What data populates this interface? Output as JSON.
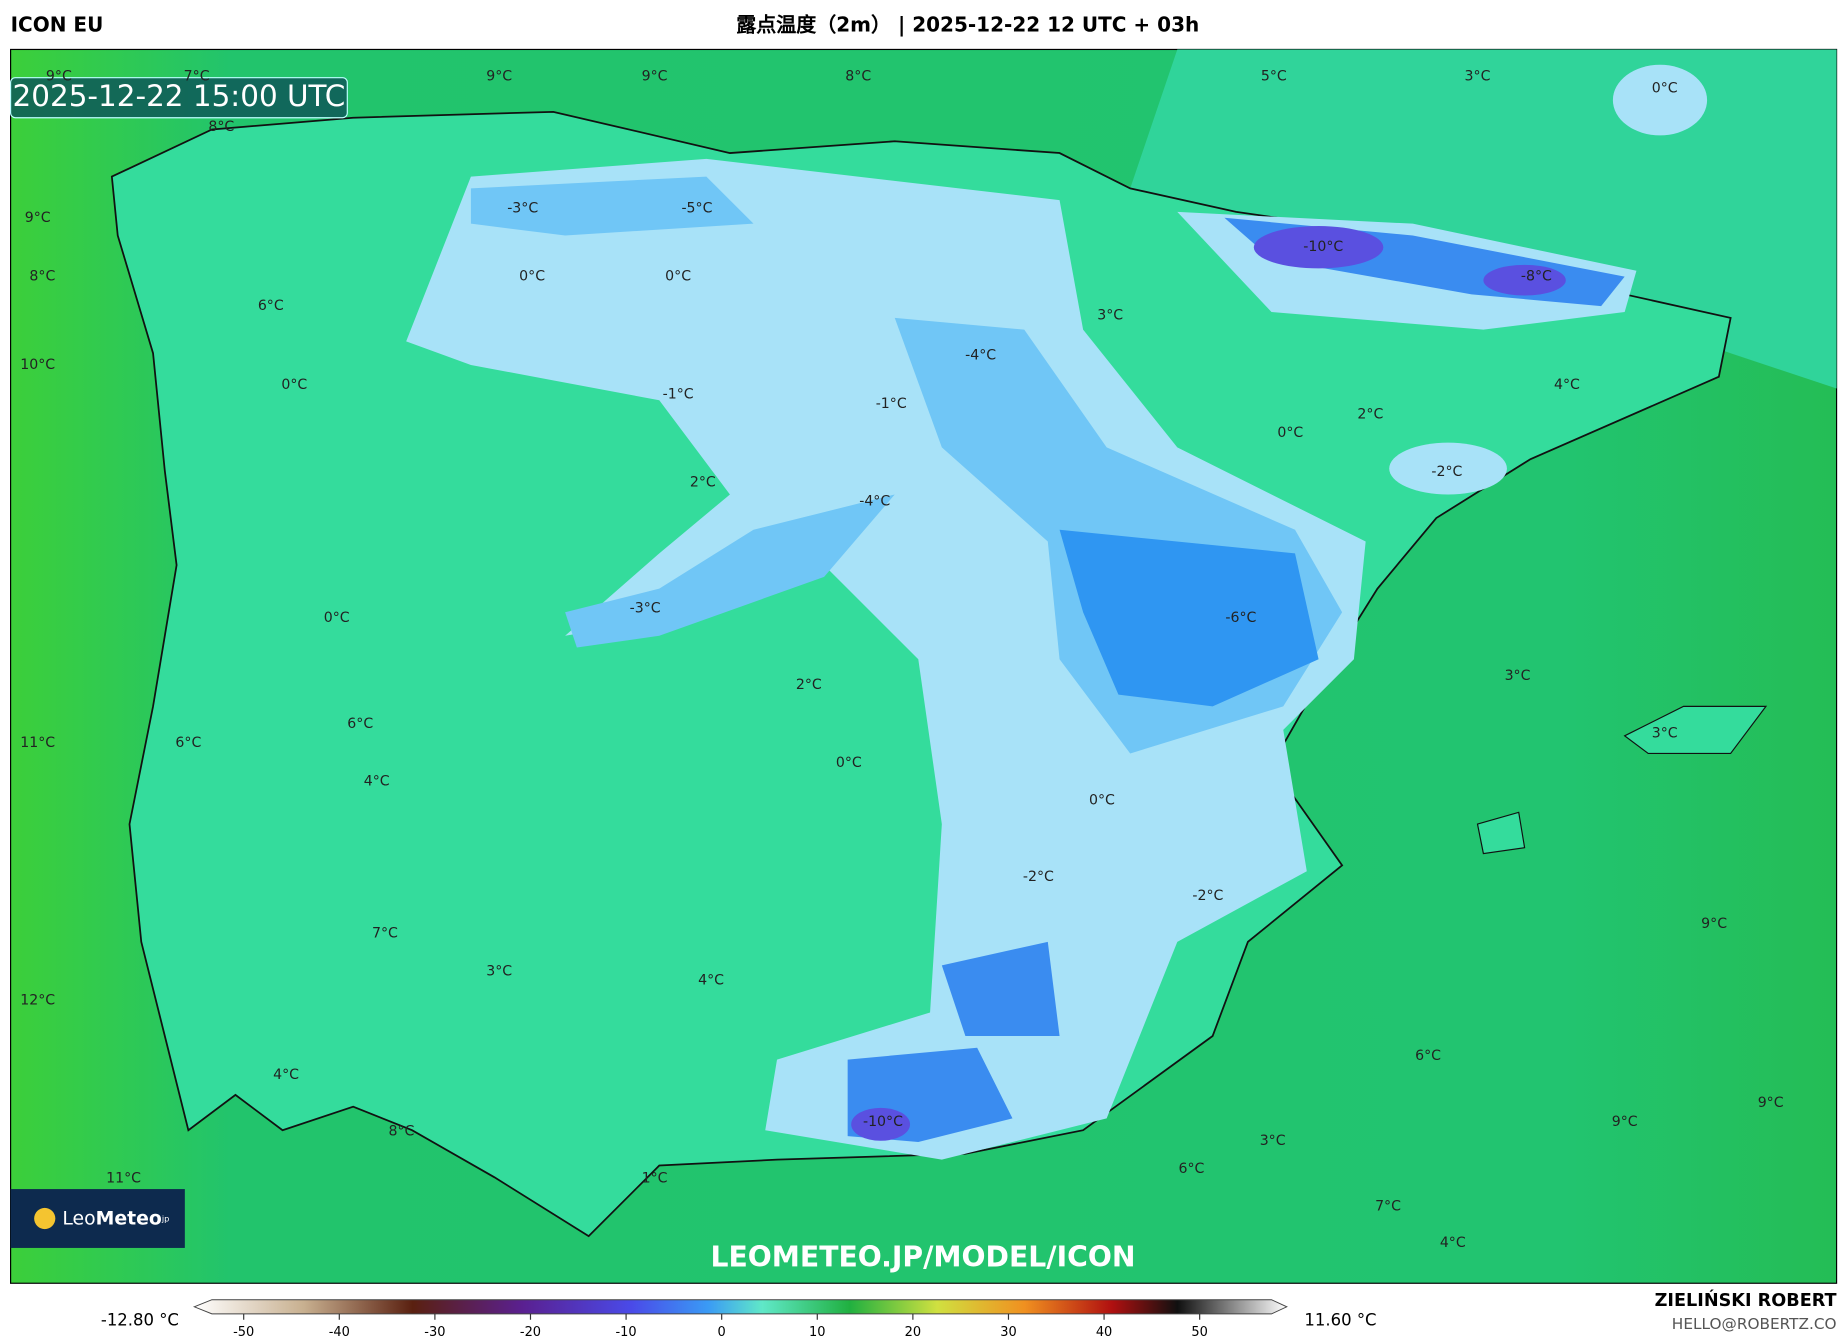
{
  "header": {
    "model": "ICON EU",
    "title": "露点温度（2m） | 2025-12-22 12 UTC + 03h"
  },
  "timestamp": "2025-12-22 15:00 UTC",
  "map_labels": [
    "9°C",
    "7°C",
    "9°C",
    "9°C",
    "8°C",
    "5°C",
    "3°C",
    "0°C",
    "8°C",
    "9°C",
    "-3°C",
    "-5°C",
    "-10°C",
    "8°C",
    "0°C",
    "0°C",
    "-8°C",
    "6°C",
    "3°C",
    "-4°C",
    "10°C",
    "0°C",
    "-1°C",
    "4°C",
    "-1°C",
    "2°C",
    "0°C",
    "2°C",
    "-2°C",
    "-4°C",
    "-3°C",
    "0°C",
    "-6°C",
    "3°C",
    "2°C",
    "6°C",
    "11°C",
    "6°C",
    "3°C",
    "0°C",
    "4°C",
    "0°C",
    "-2°C",
    "-2°C",
    "9°C",
    "7°C",
    "3°C",
    "4°C",
    "12°C",
    "6°C",
    "4°C",
    "9°C",
    "9°C",
    "-10°C",
    "8°C",
    "3°C",
    "6°C",
    "11°C",
    "1°C",
    "7°C",
    "4°C"
  ],
  "logo": {
    "name": "Leo",
    "bold": "Meteo",
    "suffix": "jp"
  },
  "watermark": "LEOMETEO.JP/MODEL/ICON",
  "colorbar": {
    "min_label": "-12.80 °C",
    "max_label": "11.60 °C",
    "ticks": [
      -50,
      -40,
      -30,
      -20,
      -10,
      0,
      10,
      20,
      30,
      40,
      50
    ]
  },
  "footer": {
    "author": "ZIELIŃSKI ROBERT",
    "email": "HELLO@ROBERTZ.CO"
  }
}
